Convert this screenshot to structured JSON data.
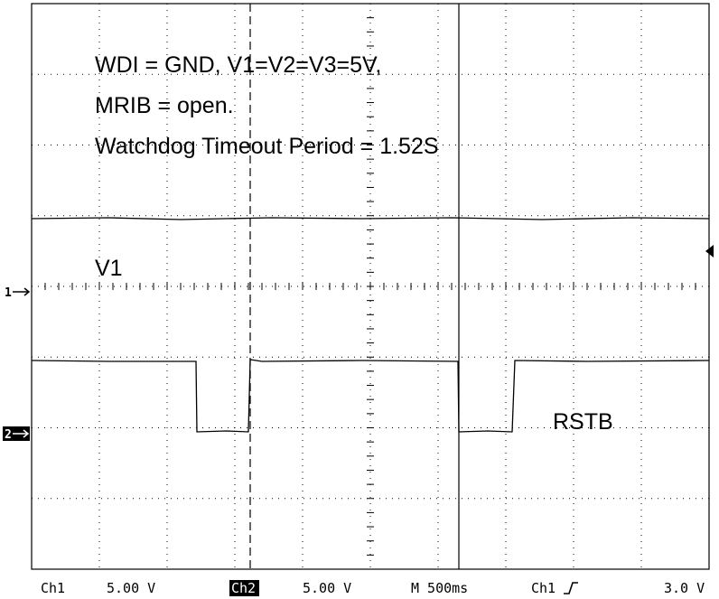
{
  "annotations": {
    "lines": [
      "WDI = GND, V1=V2=V3=5V,",
      "MRIB = open.",
      "Watchdog Timeout Period = 1.52S"
    ],
    "v1_label": "V1",
    "rstb_label": "RSTB"
  },
  "markers": {
    "ch1": "1",
    "ch2": "2"
  },
  "status": {
    "ch1": "Ch1",
    "ch1_scale": "5.00 V",
    "ch2": "Ch2",
    "ch2_scale": "5.00 V",
    "timebase": "M 500ms",
    "trigger_source": "Ch1",
    "trigger_level": "3.0 V"
  }
}
